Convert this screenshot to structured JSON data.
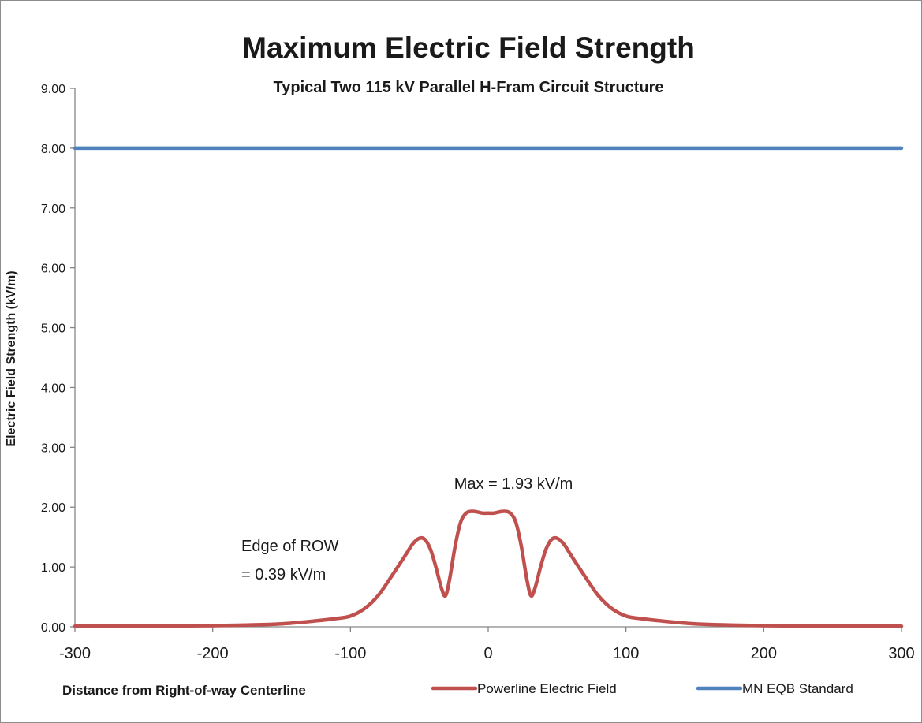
{
  "chart_data": {
    "type": "line",
    "title": "Maximum Electric Field Strength",
    "subtitle": "Typical Two 115 kV Parallel H-Fram Circuit Structure",
    "xlabel": "Distance from Right-of-way Centerline",
    "ylabel": "Electric Field Strength (kV/m)",
    "xlim": [
      -300,
      300
    ],
    "ylim": [
      0,
      9
    ],
    "x_ticks": [
      "-300",
      "-200",
      "-100",
      "0",
      "100",
      "200",
      "300"
    ],
    "y_ticks": [
      "0.00",
      "1.00",
      "2.00",
      "3.00",
      "4.00",
      "5.00",
      "6.00",
      "7.00",
      "8.00",
      "9.00"
    ],
    "grid": false,
    "legend_position": "bottom",
    "annotations": {
      "max_label": "Max = 1.93 kV/m",
      "edge_line1": "Edge of ROW",
      "edge_line2": "= 0.39 kV/m"
    },
    "series": [
      {
        "name": "Powerline Electric Field",
        "color": "#c0504d",
        "x": [
          -300,
          -250,
          -200,
          -175,
          -150,
          -125,
          -110,
          -100,
          -90,
          -80,
          -70,
          -60,
          -55,
          -50,
          -46,
          -42,
          -38,
          -34,
          -31,
          -28,
          -24,
          -20,
          -16,
          -12,
          -8,
          -4,
          0,
          4,
          8,
          12,
          16,
          20,
          24,
          28,
          31,
          34,
          38,
          42,
          46,
          50,
          55,
          60,
          70,
          80,
          90,
          100,
          110,
          125,
          150,
          175,
          200,
          250,
          300
        ],
        "y": [
          0.01,
          0.01,
          0.02,
          0.03,
          0.05,
          0.1,
          0.14,
          0.18,
          0.3,
          0.52,
          0.85,
          1.2,
          1.38,
          1.48,
          1.46,
          1.3,
          1.0,
          0.65,
          0.52,
          0.8,
          1.35,
          1.75,
          1.9,
          1.93,
          1.92,
          1.9,
          1.9,
          1.9,
          1.92,
          1.93,
          1.9,
          1.75,
          1.35,
          0.8,
          0.52,
          0.65,
          1.0,
          1.3,
          1.46,
          1.48,
          1.38,
          1.2,
          0.85,
          0.52,
          0.3,
          0.18,
          0.14,
          0.1,
          0.05,
          0.03,
          0.02,
          0.01,
          0.01
        ]
      },
      {
        "name": "MN EQB Standard",
        "color": "#4f81bd",
        "x": [
          -300,
          300
        ],
        "y": [
          8,
          8
        ]
      }
    ]
  }
}
